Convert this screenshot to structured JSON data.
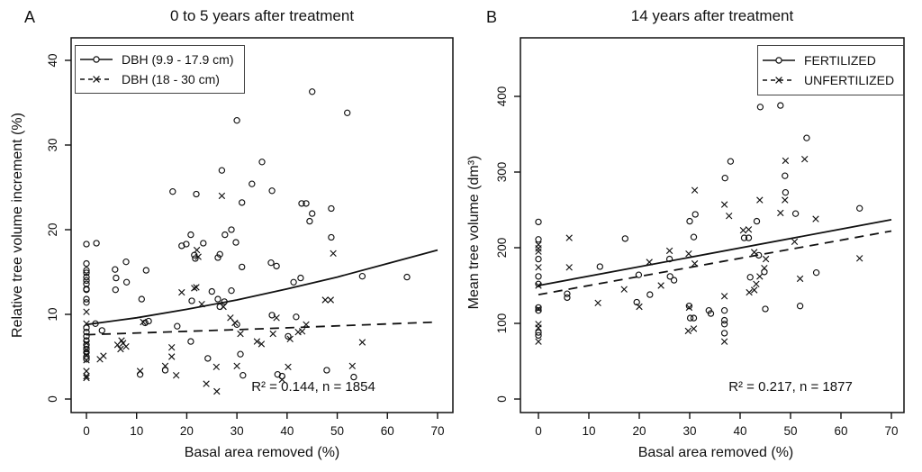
{
  "figure": {
    "background": "#ffffff",
    "ink": "#111111"
  },
  "chart_data": [
    {
      "type": "scatter",
      "panel_label": "A",
      "title": "0 to 5 years after treatment",
      "xlabel": "Basal area removed (%)",
      "ylabel": "Relative tree volume increment (%)",
      "xlim": [
        0,
        70
      ],
      "ylim": [
        0,
        40
      ],
      "x_ticks": [
        0,
        10,
        20,
        30,
        40,
        50,
        60,
        70
      ],
      "y_ticks": [
        0,
        10,
        20,
        30,
        40
      ],
      "grid": false,
      "legend_position": "top-left",
      "annotation": "R² = 0.144, n = 1854",
      "legend": [
        {
          "marker": "circle",
          "line": "solid",
          "label": "DBH (9.9 - 17.9 cm)"
        },
        {
          "marker": "cross",
          "line": "dashed",
          "label": "DBH (18 - 30 cm)"
        }
      ],
      "series": [
        {
          "name": "DBH (9.9 - 17.9 cm)",
          "marker": "circle",
          "points": [
            [
              0,
              18.3
            ],
            [
              0,
              16.0
            ],
            [
              0,
              15.2
            ],
            [
              0,
              14.9
            ],
            [
              0,
              14.4
            ],
            [
              0,
              14.0
            ],
            [
              0,
              13.6
            ],
            [
              0,
              13.0
            ],
            [
              0,
              12.9
            ],
            [
              0,
              11.8
            ],
            [
              0,
              11.4
            ],
            [
              0,
              8.4
            ],
            [
              0,
              7.9
            ],
            [
              0,
              7.4
            ],
            [
              0,
              6.9
            ],
            [
              0,
              6.4
            ],
            [
              0,
              5.9
            ],
            [
              0,
              5.5
            ],
            [
              0,
              5.0
            ],
            [
              0,
              4.7
            ],
            [
              2,
              18.4
            ],
            [
              1.8,
              8.9
            ],
            [
              3.1,
              8.1
            ],
            [
              5.7,
              15.3
            ],
            [
              5.9,
              14.3
            ],
            [
              5.8,
              12.9
            ],
            [
              7.9,
              16.2
            ],
            [
              8,
              13.8
            ],
            [
              11.9,
              15.2
            ],
            [
              11,
              11.8
            ],
            [
              11.7,
              9.0
            ],
            [
              12.4,
              9.2
            ],
            [
              10.7,
              2.9
            ],
            [
              15.7,
              3.4
            ],
            [
              17.2,
              24.5
            ],
            [
              21.9,
              24.2
            ],
            [
              19,
              18.1
            ],
            [
              19.9,
              18.3
            ],
            [
              20.8,
              19.4
            ],
            [
              21.5,
              17.0
            ],
            [
              21.7,
              16.6
            ],
            [
              21,
              11.6
            ],
            [
              18.1,
              8.6
            ],
            [
              20.8,
              6.8
            ],
            [
              23.3,
              18.4
            ],
            [
              24.2,
              4.8
            ],
            [
              25,
              12.7
            ],
            [
              26.2,
              16.7
            ],
            [
              26.6,
              17.1
            ],
            [
              27.6,
              19.4
            ],
            [
              28.9,
              20.0
            ],
            [
              29.8,
              18.5
            ],
            [
              27,
              27.0
            ],
            [
              30,
              32.9
            ],
            [
              26.2,
              11.8
            ],
            [
              27.5,
              11.5
            ],
            [
              26.6,
              10.9
            ],
            [
              28.9,
              12.8
            ],
            [
              30,
              8.8
            ],
            [
              30.7,
              5.3
            ],
            [
              31,
              15.6
            ],
            [
              31,
              23.2
            ],
            [
              31.2,
              2.8
            ],
            [
              33,
              25.4
            ],
            [
              35,
              28.0
            ],
            [
              37,
              24.6
            ],
            [
              36.8,
              16.1
            ],
            [
              37.9,
              15.7
            ],
            [
              37,
              9.9
            ],
            [
              38.1,
              2.9
            ],
            [
              39,
              2.7
            ],
            [
              41.3,
              13.8
            ],
            [
              42.7,
              14.3
            ],
            [
              41.8,
              9.7
            ],
            [
              40.2,
              7.4
            ],
            [
              42.9,
              23.1
            ],
            [
              43.8,
              23.1
            ],
            [
              45,
              21.9
            ],
            [
              44.5,
              21.0
            ],
            [
              45,
              36.3
            ],
            [
              48.8,
              22.5
            ],
            [
              48.8,
              19.1
            ],
            [
              47.9,
              3.4
            ],
            [
              52,
              33.8
            ],
            [
              53.3,
              2.6
            ],
            [
              55,
              14.5
            ],
            [
              63.9,
              14.4
            ]
          ]
        },
        {
          "name": "DBH (18 - 30 cm)",
          "marker": "cross",
          "points": [
            [
              0,
              10.3
            ],
            [
              0,
              8.9
            ],
            [
              0,
              6.6
            ],
            [
              0,
              5.8
            ],
            [
              0,
              5.2
            ],
            [
              0,
              4.6
            ],
            [
              0,
              3.3
            ],
            [
              0,
              2.7
            ],
            [
              0,
              2.5
            ],
            [
              2.7,
              4.7
            ],
            [
              3.4,
              5.1
            ],
            [
              6.2,
              6.4
            ],
            [
              6.8,
              5.9
            ],
            [
              7.3,
              6.6
            ],
            [
              7.9,
              6.2
            ],
            [
              7.0,
              6.9
            ],
            [
              10.7,
              3.3
            ],
            [
              11.3,
              9.1
            ],
            [
              15.7,
              3.9
            ],
            [
              17,
              6.1
            ],
            [
              17,
              5.0
            ],
            [
              17.9,
              2.8
            ],
            [
              19,
              12.6
            ],
            [
              21.5,
              13.1
            ],
            [
              21.9,
              13.2
            ],
            [
              22,
              17.6
            ],
            [
              22.3,
              16.8
            ],
            [
              23,
              11.2
            ],
            [
              23.9,
              1.8
            ],
            [
              25.9,
              3.8
            ],
            [
              26,
              0.9
            ],
            [
              27,
              24.0
            ],
            [
              27.3,
              10.9
            ],
            [
              28.7,
              9.6
            ],
            [
              29.6,
              9.0
            ],
            [
              30,
              3.9
            ],
            [
              30.7,
              7.7
            ],
            [
              34,
              6.8
            ],
            [
              34.9,
              6.5
            ],
            [
              37.2,
              7.7
            ],
            [
              37.9,
              9.6
            ],
            [
              39,
              2.3
            ],
            [
              40.2,
              3.8
            ],
            [
              40.6,
              7.1
            ],
            [
              42.2,
              7.9
            ],
            [
              43,
              8.0
            ],
            [
              43.8,
              8.8
            ],
            [
              47.6,
              11.7
            ],
            [
              48.7,
              11.7
            ],
            [
              49.2,
              17.2
            ],
            [
              53,
              3.9
            ],
            [
              55,
              6.7
            ]
          ]
        }
      ],
      "trend_lines": [
        {
          "style": "solid",
          "points": [
            [
              0,
              8.8
            ],
            [
              10,
              9.6
            ],
            [
              20,
              10.6
            ],
            [
              30,
              11.7
            ],
            [
              40,
              13.0
            ],
            [
              50,
              14.4
            ],
            [
              60,
              16.0
            ],
            [
              70,
              17.6
            ]
          ]
        },
        {
          "style": "dashed",
          "points": [
            [
              0,
              7.6
            ],
            [
              35,
              8.3
            ],
            [
              70,
              9.1
            ]
          ]
        }
      ]
    },
    {
      "type": "scatter",
      "panel_label": "B",
      "title": "14 years after treatment",
      "xlabel": "Basal area removed (%)",
      "ylabel": "Mean tree volume (dm³)",
      "xlim": [
        0,
        70
      ],
      "ylim": [
        0,
        450
      ],
      "x_ticks": [
        0,
        10,
        20,
        30,
        40,
        50,
        60,
        70
      ],
      "y_ticks": [
        0,
        100,
        200,
        300,
        400
      ],
      "grid": false,
      "legend_position": "top-right",
      "annotation": "R² = 0.217, n = 1877",
      "legend": [
        {
          "marker": "circle",
          "line": "solid",
          "label": "FERTILIZED"
        },
        {
          "marker": "cross",
          "line": "dashed",
          "label": "UNFERTILIZED"
        }
      ],
      "series": [
        {
          "name": "FERTILIZED",
          "marker": "circle",
          "points": [
            [
              0,
              234
            ],
            [
              0,
              211
            ],
            [
              0,
              185
            ],
            [
              0,
              162
            ],
            [
              0,
              152
            ],
            [
              0,
              121
            ],
            [
              0,
              117
            ],
            [
              0,
              88
            ],
            [
              0,
              84
            ],
            [
              5.7,
              139
            ],
            [
              5.7,
              134
            ],
            [
              12.2,
              175
            ],
            [
              17.2,
              212
            ],
            [
              19.9,
              164
            ],
            [
              19.5,
              128
            ],
            [
              22.1,
              138
            ],
            [
              26,
              185
            ],
            [
              26.1,
              162
            ],
            [
              26.9,
              157
            ],
            [
              29.9,
              123
            ],
            [
              30,
              235
            ],
            [
              31.1,
              244
            ],
            [
              30.8,
              214
            ],
            [
              30.1,
              107
            ],
            [
              30.8,
              107
            ],
            [
              33.8,
              117
            ],
            [
              34.2,
              113
            ],
            [
              36.9,
              117
            ],
            [
              36.9,
              104
            ],
            [
              36.9,
              99
            ],
            [
              36.9,
              87
            ],
            [
              37,
              292
            ],
            [
              38.1,
              314
            ],
            [
              40.8,
              213
            ],
            [
              41.7,
              213
            ],
            [
              42,
              161
            ],
            [
              43.3,
              235
            ],
            [
              43.7,
              190
            ],
            [
              44,
              386
            ],
            [
              44.8,
              168
            ],
            [
              45,
              119
            ],
            [
              48,
              388
            ],
            [
              48.9,
              295
            ],
            [
              49,
              273
            ],
            [
              51,
              245
            ],
            [
              51.9,
              123
            ],
            [
              53.2,
              345
            ],
            [
              55.1,
              167
            ],
            [
              63.7,
              252
            ]
          ]
        },
        {
          "name": "UNFERTILIZED",
          "marker": "cross",
          "points": [
            [
              0,
              204
            ],
            [
              0,
              199
            ],
            [
              0,
              195
            ],
            [
              0,
              174
            ],
            [
              0,
              150
            ],
            [
              0,
              119
            ],
            [
              0,
              99
            ],
            [
              0,
              94
            ],
            [
              0,
              76
            ],
            [
              6.1,
              213
            ],
            [
              6.1,
              174
            ],
            [
              11.8,
              127
            ],
            [
              17,
              145
            ],
            [
              20,
              122
            ],
            [
              22,
              181
            ],
            [
              24.3,
              150
            ],
            [
              26,
              196
            ],
            [
              29.8,
              192
            ],
            [
              31,
              179
            ],
            [
              29.9,
              121
            ],
            [
              29.7,
              90
            ],
            [
              30.8,
              93
            ],
            [
              31,
              276
            ],
            [
              36.9,
              257
            ],
            [
              37.8,
              242
            ],
            [
              36.9,
              136
            ],
            [
              36.9,
              76
            ],
            [
              40.6,
              223
            ],
            [
              41.7,
              224
            ],
            [
              41.8,
              141
            ],
            [
              42.8,
              144
            ],
            [
              42.8,
              194
            ],
            [
              43.9,
              263
            ],
            [
              43.2,
              152
            ],
            [
              43.9,
              162
            ],
            [
              44.8,
              173
            ],
            [
              45.1,
              185
            ],
            [
              48,
              246
            ],
            [
              48.9,
              263
            ],
            [
              49,
              315
            ],
            [
              50.8,
              208
            ],
            [
              51.9,
              159
            ],
            [
              52.8,
              317
            ],
            [
              55,
              238
            ],
            [
              63.7,
              186
            ]
          ]
        }
      ],
      "trend_lines": [
        {
          "style": "solid",
          "points": [
            [
              0,
              150
            ],
            [
              70,
              237
            ]
          ]
        },
        {
          "style": "dashed",
          "points": [
            [
              0,
              138
            ],
            [
              70,
              222
            ]
          ]
        }
      ]
    }
  ]
}
